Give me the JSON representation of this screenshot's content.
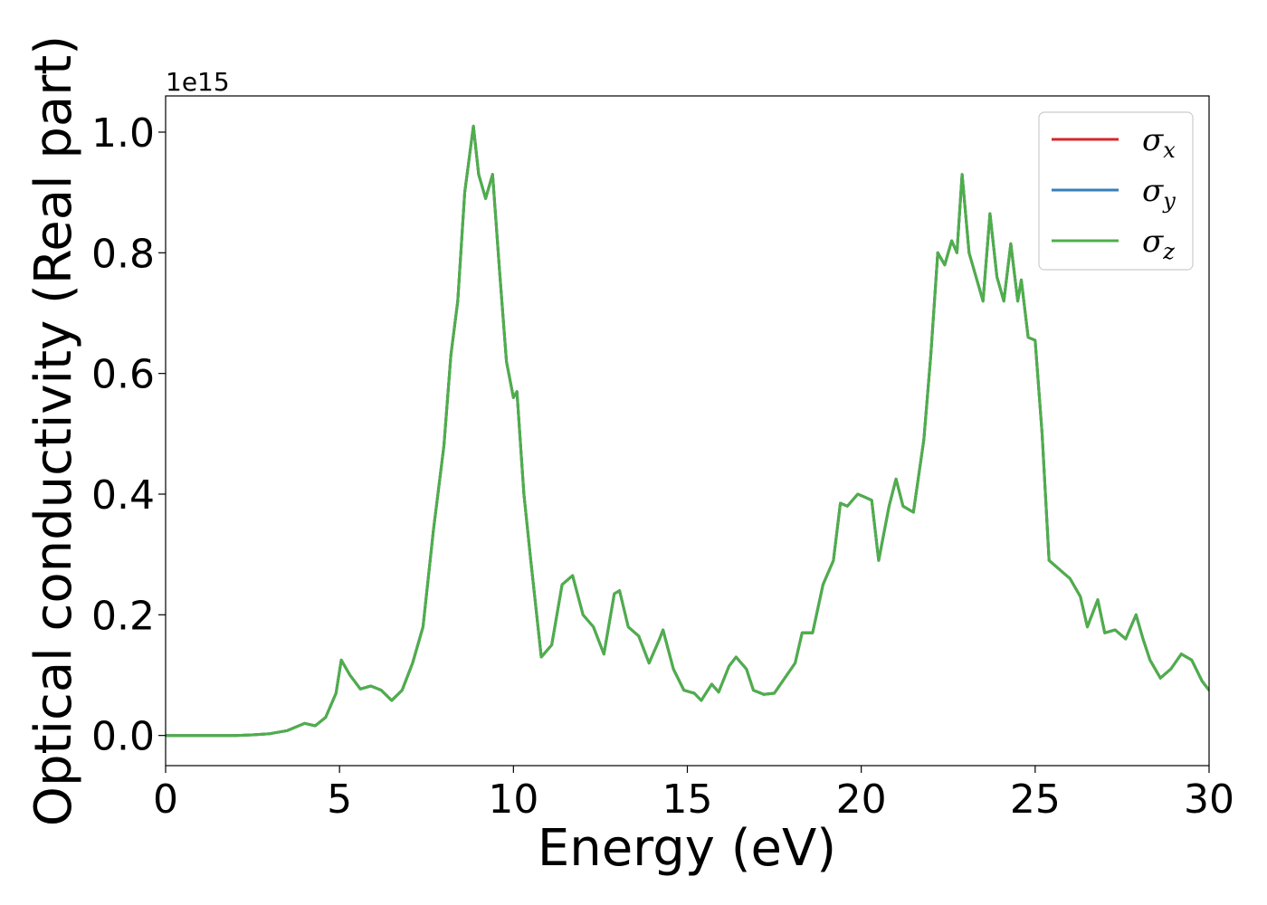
{
  "chart_data": {
    "type": "line",
    "title": "",
    "xlabel": "Energy (eV)",
    "ylabel": "Optical conductivity (Real part)",
    "y_offset_label": "1e15",
    "xlim": [
      0,
      30
    ],
    "ylim": [
      -0.05,
      1.06
    ],
    "x_ticks": [
      0,
      5,
      10,
      15,
      20,
      25,
      30
    ],
    "x_tick_labels": [
      "0",
      "5",
      "10",
      "15",
      "20",
      "25",
      "30"
    ],
    "y_ticks": [
      0.0,
      0.2,
      0.4,
      0.6,
      0.8,
      1.0
    ],
    "y_tick_labels": [
      "0.0",
      "0.2",
      "0.4",
      "0.6",
      "0.8",
      "1.0"
    ],
    "grid": false,
    "legend_position": "top-right",
    "legend": [
      {
        "symbol": "σ",
        "sub": "x",
        "color": "#d62728"
      },
      {
        "symbol": "σ",
        "sub": "y",
        "color": "#377eb8"
      },
      {
        "symbol": "σ",
        "sub": "z",
        "color": "#4daf4a"
      }
    ],
    "x": [
      0,
      1,
      2,
      2.5,
      3,
      3.5,
      4,
      4.3,
      4.6,
      4.9,
      5.05,
      5.3,
      5.6,
      5.9,
      6.2,
      6.5,
      6.8,
      7.1,
      7.4,
      7.7,
      8.0,
      8.2,
      8.4,
      8.6,
      8.85,
      9.0,
      9.2,
      9.4,
      9.6,
      9.8,
      10.0,
      10.1,
      10.3,
      10.5,
      10.8,
      11.1,
      11.4,
      11.7,
      12.0,
      12.3,
      12.6,
      12.9,
      13.05,
      13.3,
      13.6,
      13.9,
      14.2,
      14.3,
      14.6,
      14.9,
      15.2,
      15.4,
      15.7,
      15.9,
      16.2,
      16.4,
      16.7,
      16.9,
      17.2,
      17.5,
      17.8,
      18.1,
      18.3,
      18.6,
      18.9,
      19.2,
      19.4,
      19.6,
      19.9,
      20.1,
      20.3,
      20.5,
      20.8,
      21.0,
      21.2,
      21.5,
      21.8,
      22.0,
      22.2,
      22.4,
      22.6,
      22.75,
      22.9,
      23.1,
      23.3,
      23.5,
      23.7,
      23.9,
      24.1,
      24.3,
      24.5,
      24.6,
      24.8,
      25.0,
      25.2,
      25.4,
      25.7,
      26.0,
      26.3,
      26.5,
      26.8,
      27.0,
      27.3,
      27.6,
      27.9,
      28.1,
      28.3,
      28.6,
      28.9,
      29.2,
      29.5,
      29.8,
      30.0
    ],
    "series": [
      {
        "name": "σx",
        "values": [
          0,
          0,
          0,
          0.001,
          0.003,
          0.008,
          0.02,
          0.016,
          0.03,
          0.07,
          0.125,
          0.1,
          0.077,
          0.082,
          0.075,
          0.058,
          0.075,
          0.12,
          0.18,
          0.34,
          0.48,
          0.63,
          0.72,
          0.9,
          1.01,
          0.93,
          0.89,
          0.93,
          0.77,
          0.62,
          0.56,
          0.57,
          0.4,
          0.29,
          0.13,
          0.15,
          0.25,
          0.265,
          0.2,
          0.18,
          0.135,
          0.235,
          0.24,
          0.18,
          0.165,
          0.12,
          0.16,
          0.175,
          0.11,
          0.075,
          0.07,
          0.058,
          0.085,
          0.072,
          0.115,
          0.13,
          0.11,
          0.075,
          0.068,
          0.07,
          0.095,
          0.12,
          0.17,
          0.17,
          0.25,
          0.29,
          0.385,
          0.38,
          0.4,
          0.395,
          0.39,
          0.29,
          0.38,
          0.425,
          0.38,
          0.37,
          0.49,
          0.63,
          0.8,
          0.78,
          0.82,
          0.8,
          0.93,
          0.8,
          0.76,
          0.72,
          0.865,
          0.76,
          0.72,
          0.815,
          0.72,
          0.755,
          0.66,
          0.655,
          0.5,
          0.29,
          0.275,
          0.26,
          0.23,
          0.18,
          0.225,
          0.17,
          0.175,
          0.16,
          0.2,
          0.16,
          0.125,
          0.095,
          0.11,
          0.135,
          0.125,
          0.09,
          0.075
        ]
      },
      {
        "name": "σy",
        "values": [
          0,
          0,
          0,
          0.001,
          0.003,
          0.008,
          0.02,
          0.016,
          0.03,
          0.07,
          0.125,
          0.1,
          0.077,
          0.082,
          0.075,
          0.058,
          0.075,
          0.12,
          0.18,
          0.34,
          0.48,
          0.63,
          0.72,
          0.9,
          1.01,
          0.93,
          0.89,
          0.93,
          0.77,
          0.62,
          0.56,
          0.57,
          0.4,
          0.29,
          0.13,
          0.15,
          0.25,
          0.265,
          0.2,
          0.18,
          0.135,
          0.235,
          0.24,
          0.18,
          0.165,
          0.12,
          0.16,
          0.175,
          0.11,
          0.075,
          0.07,
          0.058,
          0.085,
          0.072,
          0.115,
          0.13,
          0.11,
          0.075,
          0.068,
          0.07,
          0.095,
          0.12,
          0.17,
          0.17,
          0.25,
          0.29,
          0.385,
          0.38,
          0.4,
          0.395,
          0.39,
          0.29,
          0.38,
          0.425,
          0.38,
          0.37,
          0.49,
          0.63,
          0.8,
          0.78,
          0.82,
          0.8,
          0.93,
          0.8,
          0.76,
          0.72,
          0.865,
          0.76,
          0.72,
          0.815,
          0.72,
          0.755,
          0.66,
          0.655,
          0.5,
          0.29,
          0.275,
          0.26,
          0.23,
          0.18,
          0.225,
          0.17,
          0.175,
          0.16,
          0.2,
          0.16,
          0.125,
          0.095,
          0.11,
          0.135,
          0.125,
          0.09,
          0.075
        ]
      },
      {
        "name": "σz",
        "values": [
          0,
          0,
          0,
          0.001,
          0.003,
          0.008,
          0.02,
          0.016,
          0.03,
          0.07,
          0.125,
          0.1,
          0.077,
          0.082,
          0.075,
          0.058,
          0.075,
          0.12,
          0.18,
          0.34,
          0.48,
          0.63,
          0.72,
          0.9,
          1.01,
          0.93,
          0.89,
          0.93,
          0.77,
          0.62,
          0.56,
          0.57,
          0.4,
          0.29,
          0.13,
          0.15,
          0.25,
          0.265,
          0.2,
          0.18,
          0.135,
          0.235,
          0.24,
          0.18,
          0.165,
          0.12,
          0.16,
          0.175,
          0.11,
          0.075,
          0.07,
          0.058,
          0.085,
          0.072,
          0.115,
          0.13,
          0.11,
          0.075,
          0.068,
          0.07,
          0.095,
          0.12,
          0.17,
          0.17,
          0.25,
          0.29,
          0.385,
          0.38,
          0.4,
          0.395,
          0.39,
          0.29,
          0.38,
          0.425,
          0.38,
          0.37,
          0.49,
          0.63,
          0.8,
          0.78,
          0.82,
          0.8,
          0.93,
          0.8,
          0.76,
          0.72,
          0.865,
          0.76,
          0.72,
          0.815,
          0.72,
          0.755,
          0.66,
          0.655,
          0.5,
          0.29,
          0.275,
          0.26,
          0.23,
          0.18,
          0.225,
          0.17,
          0.175,
          0.16,
          0.2,
          0.16,
          0.125,
          0.095,
          0.11,
          0.135,
          0.125,
          0.09,
          0.075
        ]
      }
    ]
  }
}
